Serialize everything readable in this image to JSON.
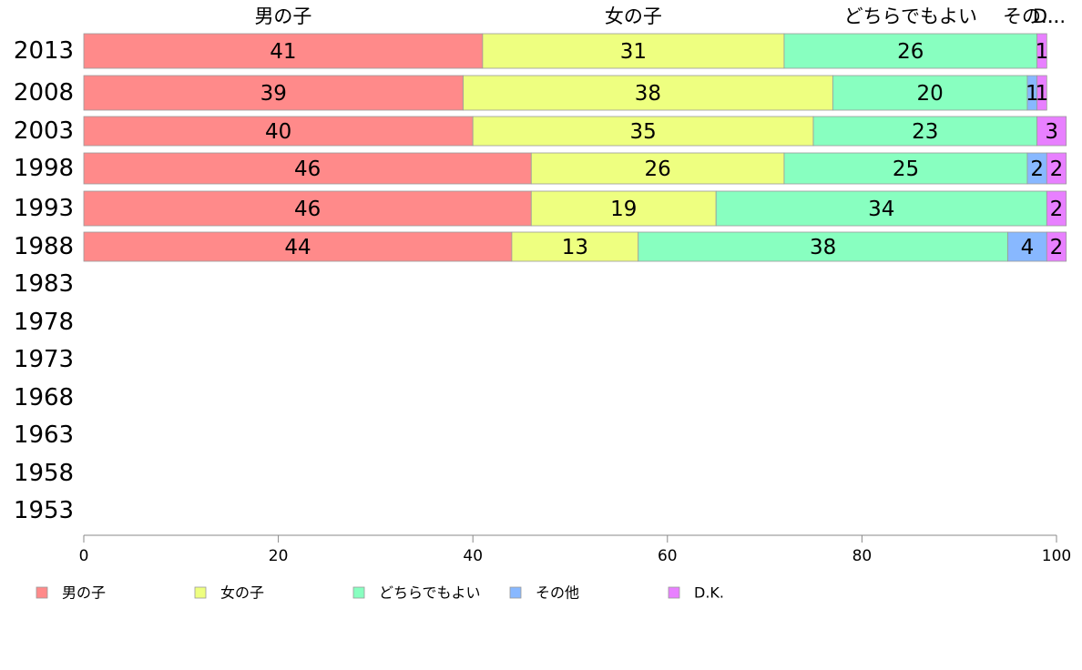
{
  "chart_data": {
    "type": "bar",
    "orientation": "horizontal",
    "stacked": true,
    "categories": [
      "2013",
      "2008",
      "2003",
      "1998",
      "1993",
      "1988",
      "1983",
      "1978",
      "1973",
      "1968",
      "1963",
      "1958",
      "1953"
    ],
    "series": [
      {
        "name": "男の子",
        "header": "男の子",
        "color": "#ff8a8a",
        "values": [
          41,
          39,
          40,
          46,
          46,
          44,
          null,
          null,
          null,
          null,
          null,
          null,
          null
        ]
      },
      {
        "name": "女の子",
        "header": "女の子",
        "color": "#eeff80",
        "values": [
          31,
          38,
          35,
          26,
          19,
          13,
          null,
          null,
          null,
          null,
          null,
          null,
          null
        ]
      },
      {
        "name": "どちらでもよい",
        "header": "どちらでもよい",
        "color": "#88ffc0",
        "values": [
          26,
          20,
          23,
          25,
          34,
          38,
          null,
          null,
          null,
          null,
          null,
          null,
          null
        ]
      },
      {
        "name": "その他",
        "header": "その...",
        "color": "#88b8ff",
        "values": [
          0,
          1,
          0,
          2,
          0,
          4,
          null,
          null,
          null,
          null,
          null,
          null,
          null
        ]
      },
      {
        "name": "D.K.",
        "header": "D...",
        "color": "#e880ff",
        "values": [
          1,
          1,
          3,
          2,
          2,
          2,
          null,
          null,
          null,
          null,
          null,
          null,
          null
        ]
      }
    ],
    "xlim": [
      0,
      100
    ],
    "xticks": [
      "0",
      "20",
      "40",
      "60",
      "80",
      "100"
    ],
    "grid": false,
    "legend_position": "bottom"
  }
}
